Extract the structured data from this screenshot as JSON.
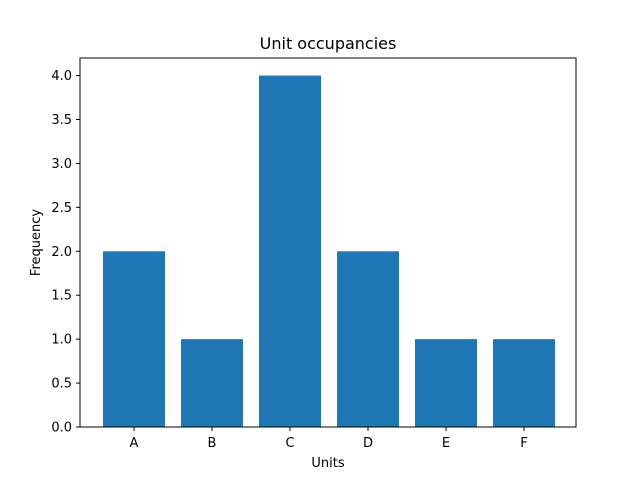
{
  "chart_data": {
    "type": "bar",
    "title": "Unit occupancies",
    "xlabel": "Units",
    "ylabel": "Frequency",
    "categories": [
      "A",
      "B",
      "C",
      "D",
      "E",
      "F"
    ],
    "values": [
      2,
      1,
      4,
      2,
      1,
      1
    ],
    "ylim": [
      0,
      4.2
    ],
    "yticks": [
      0.0,
      0.5,
      1.0,
      1.5,
      2.0,
      2.5,
      3.0,
      3.5,
      4.0
    ],
    "ytick_labels": [
      "0.0",
      "0.5",
      "1.0",
      "1.5",
      "2.0",
      "2.5",
      "3.0",
      "3.5",
      "4.0"
    ],
    "grid": false,
    "legend": "none",
    "bar_color": "#1f77b4"
  }
}
